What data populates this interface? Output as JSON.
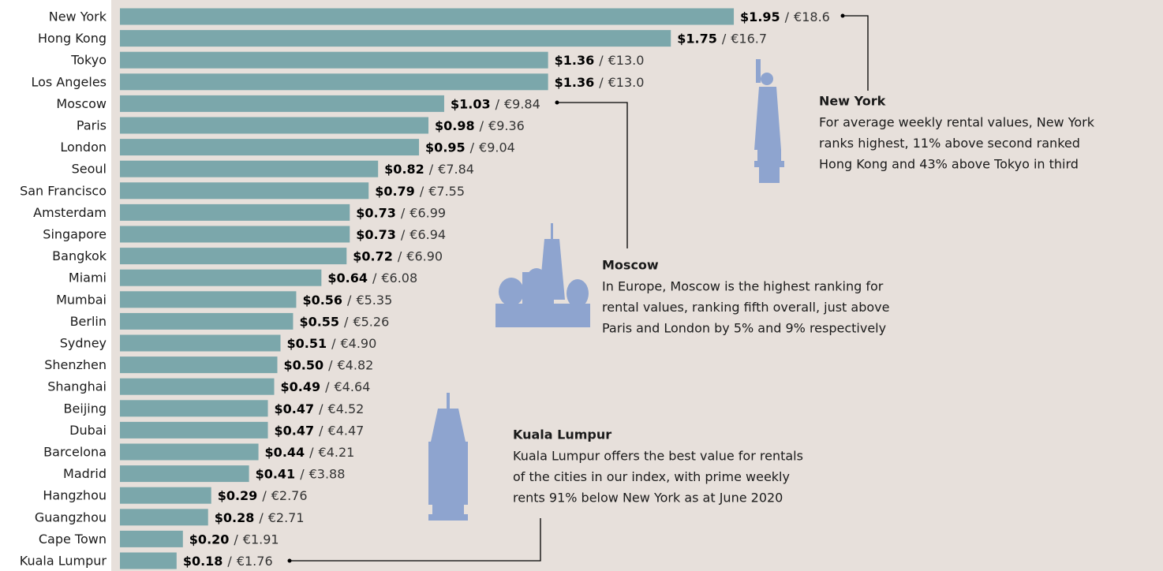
{
  "chart_data": {
    "type": "bar",
    "orientation": "horizontal",
    "categories": [
      "New York",
      "Hong Kong",
      "Tokyo",
      "Los Angeles",
      "Moscow",
      "Paris",
      "London",
      "Seoul",
      "San Francisco",
      "Amsterdam",
      "Singapore",
      "Bangkok",
      "Miami",
      "Mumbai",
      "Berlin",
      "Sydney",
      "Shenzhen",
      "Shanghai",
      "Beijing",
      "Dubai",
      "Barcelona",
      "Madrid",
      "Hangzhou",
      "Guangzhou",
      "Cape Town",
      "Kuala Lumpur"
    ],
    "values": [
      1.95,
      1.75,
      1.36,
      1.36,
      1.03,
      0.98,
      0.95,
      0.82,
      0.79,
      0.73,
      0.73,
      0.72,
      0.64,
      0.56,
      0.55,
      0.51,
      0.5,
      0.49,
      0.47,
      0.47,
      0.44,
      0.41,
      0.29,
      0.28,
      0.2,
      0.18
    ],
    "value_labels": [
      "$1.95",
      "$1.75",
      "$1.36",
      "$1.36",
      "$1.03",
      "$0.98",
      "$0.95",
      "$0.82",
      "$0.79",
      "$0.73",
      "$0.73",
      "$0.72",
      "$0.64",
      "$0.56",
      "$0.55",
      "$0.51",
      "$0.50",
      "$0.49",
      "$0.47",
      "$0.47",
      "$0.44",
      "$0.41",
      "$0.29",
      "$0.28",
      "$0.20",
      "$0.18"
    ],
    "separator": "/",
    "eur_values": [
      18.6,
      16.7,
      13.0,
      13.0,
      9.84,
      9.36,
      9.04,
      7.84,
      7.55,
      6.99,
      6.94,
      6.9,
      6.08,
      5.35,
      5.26,
      4.9,
      4.82,
      4.64,
      4.52,
      4.47,
      4.21,
      3.88,
      2.76,
      2.71,
      1.91,
      1.76
    ],
    "eur_value_labels": [
      "€18.6",
      "€16.7",
      "€13.0",
      "€13.0",
      "€9.84",
      "€9.36",
      "€9.04",
      "€7.84",
      "€7.55",
      "€6.99",
      "€6.94",
      "€6.90",
      "€6.08",
      "€5.35",
      "€5.26",
      "€4.90",
      "€4.82",
      "€4.64",
      "€4.52",
      "€4.47",
      "€4.21",
      "€3.88",
      "€2.76",
      "€2.71",
      "€1.91",
      "€1.76"
    ],
    "color": "#7ba7ab",
    "annotations": [
      {
        "title": "New York",
        "lines": [
          "For average weekly rental values, New York",
          "ranks highest, 11% above second ranked",
          "Hong Kong and 43% above Tokyo in third"
        ]
      },
      {
        "title": "Moscow",
        "lines": [
          "In Europe, Moscow is the highest ranking for",
          "rental values, ranking fifth overall, just above",
          "Paris and London by 5% and 9% respectively"
        ]
      },
      {
        "title": "Kuala Lumpur",
        "lines": [
          "Kuala Lumpur offers the best value for rentals",
          "of the cities in our index, with prime weekly",
          "rents 91% below New York as at June 2020"
        ]
      }
    ]
  }
}
